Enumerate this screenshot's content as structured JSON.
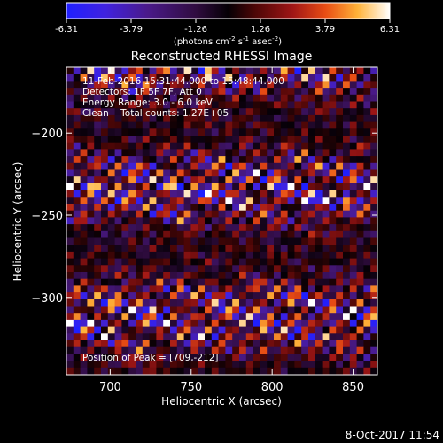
{
  "chart_data": {
    "type": "heatmap",
    "title": "Reconstructed RHESSI Image",
    "xlabel": "Heliocentric X (arcsec)",
    "ylabel": "Heliocentric Y (arcsec)",
    "xlim": [
      673,
      865
    ],
    "ylim": [
      -347,
      -160
    ],
    "x_ticks": [
      700,
      750,
      800,
      850
    ],
    "y_ticks": [
      -200,
      -250,
      -300
    ],
    "colorbar": {
      "ticks": [
        "-6.31",
        "-3.79",
        "-1.26",
        "1.26",
        "3.79",
        "6.31"
      ],
      "min": -6.31,
      "max": 6.31,
      "label_main": "(photons cm",
      "label_exp1": "-2",
      "label_mid": " s",
      "label_exp2": "-1",
      "label_after": " asec",
      "label_exp3": "-2",
      "label_close": ")"
    },
    "annotations": [
      "11-Feb-2016 15:31:44.000 to 15:48:44.000",
      "Detectors: 1F 5F 7F, Att 0",
      "Energy Range: 3.0 - 6.0 keV",
      "Clean    Total counts: 1.27E+05"
    ],
    "peak_label": "Position of Peak = [709,-212]",
    "grid": false,
    "pattern": {
      "description": "diagonal striped fringe pattern of positive and negative intensities",
      "intensity_range": [
        -6.31,
        6.31
      ]
    }
  },
  "footer": {
    "timestamp": "8-Oct-2017 11:54"
  }
}
